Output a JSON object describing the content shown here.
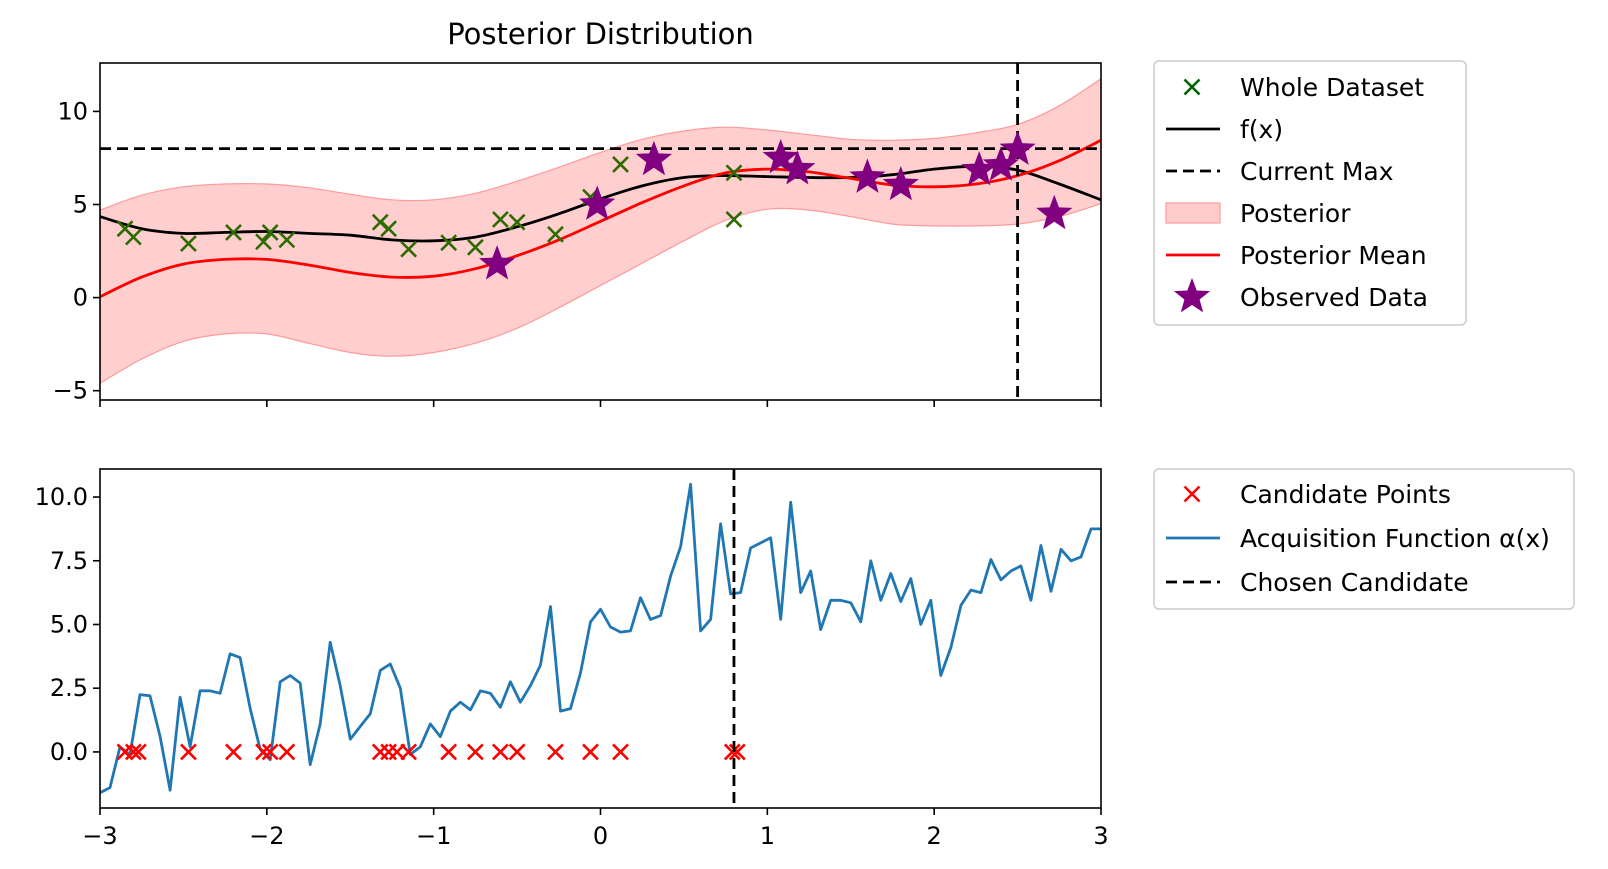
{
  "chart_data": [
    {
      "type": "line",
      "title": "Posterior Distribution",
      "xlim": [
        -3,
        3
      ],
      "ylim": [
        -5.5,
        12.6
      ],
      "x_ticks": [
        -3,
        -2,
        -1,
        0,
        1,
        2,
        3
      ],
      "x_tick_labels_shown": false,
      "y_ticks": [
        -5,
        0,
        5,
        10
      ],
      "y_tick_labels": [
        "−5",
        "0",
        "5",
        "10"
      ],
      "grid": false,
      "legend_position": "outside-right-top",
      "legend": [
        {
          "label": "Whole Dataset",
          "marker": "x",
          "color": "#006400"
        },
        {
          "label": "f(x)",
          "line": "solid",
          "color": "#000000"
        },
        {
          "label": "Current Max",
          "line": "dashed",
          "color": "#000000"
        },
        {
          "label": "Posterior",
          "patch": true,
          "color": "#ffcccc"
        },
        {
          "label": "Posterior Mean",
          "line": "solid",
          "color": "#ff0000"
        },
        {
          "label": "Observed Data",
          "marker": "star",
          "color": "#800080"
        }
      ],
      "series": [
        {
          "name": "f(x)",
          "color": "#000000",
          "x": [
            -3,
            -2.75,
            -2.5,
            -2.25,
            -2,
            -1.75,
            -1.5,
            -1.25,
            -1,
            -0.75,
            -0.5,
            -0.25,
            0,
            0.25,
            0.5,
            0.75,
            1,
            1.25,
            1.5,
            1.75,
            2,
            2.25,
            2.5,
            2.75,
            3
          ],
          "y": [
            4.35,
            3.7,
            3.45,
            3.5,
            3.55,
            3.45,
            3.35,
            3.1,
            3.05,
            3.25,
            3.8,
            4.5,
            5.3,
            6.0,
            6.45,
            6.55,
            6.5,
            6.45,
            6.45,
            6.6,
            6.9,
            7.05,
            6.85,
            6.1,
            5.25
          ]
        },
        {
          "name": "Posterior Mean",
          "color": "#ff0000",
          "x": [
            -3,
            -2.75,
            -2.5,
            -2.25,
            -2,
            -1.75,
            -1.5,
            -1.25,
            -1,
            -0.75,
            -0.5,
            -0.25,
            0,
            0.25,
            0.5,
            0.75,
            1,
            1.25,
            1.5,
            1.75,
            2,
            2.25,
            2.5,
            2.75,
            3
          ],
          "y": [
            0.05,
            1.1,
            1.8,
            2.05,
            2.05,
            1.75,
            1.35,
            1.1,
            1.15,
            1.55,
            2.25,
            3.1,
            4.1,
            5.1,
            6.0,
            6.7,
            6.9,
            6.75,
            6.4,
            6.05,
            5.95,
            6.1,
            6.55,
            7.35,
            8.45
          ]
        },
        {
          "name": "Posterior",
          "color": "#ffcccc",
          "x": [
            -3,
            -2.75,
            -2.5,
            -2.25,
            -2,
            -1.75,
            -1.5,
            -1.25,
            -1,
            -0.75,
            -0.5,
            -0.25,
            0,
            0.25,
            0.5,
            0.75,
            1,
            1.25,
            1.5,
            1.75,
            2,
            2.25,
            2.5,
            2.75,
            3
          ],
          "upper": [
            4.7,
            5.5,
            5.95,
            6.1,
            6.1,
            5.9,
            5.55,
            5.25,
            5.25,
            5.6,
            6.25,
            7.0,
            7.8,
            8.5,
            8.95,
            9.15,
            9.0,
            8.75,
            8.5,
            8.45,
            8.55,
            8.85,
            9.3,
            10.3,
            11.75
          ],
          "lower": [
            -4.6,
            -3.3,
            -2.35,
            -1.95,
            -1.95,
            -2.45,
            -2.95,
            -3.15,
            -2.95,
            -2.45,
            -1.65,
            -0.55,
            0.65,
            1.85,
            3.05,
            4.15,
            4.75,
            4.7,
            4.35,
            3.95,
            3.85,
            3.85,
            3.95,
            4.35,
            5.05
          ]
        },
        {
          "name": "Current Max",
          "color": "#000000",
          "y": 8.0
        },
        {
          "name": "Whole Dataset",
          "color": "#006400",
          "x": [
            -2.85,
            -2.8,
            -2.47,
            -2.2,
            -2.02,
            -1.98,
            -1.88,
            -1.32,
            -1.27,
            -1.15,
            -0.91,
            -0.75,
            -0.6,
            -0.5,
            -0.27,
            -0.06,
            0.12,
            0.8,
            0.8
          ],
          "y": [
            3.7,
            3.25,
            2.9,
            3.5,
            3.0,
            3.5,
            3.1,
            4.05,
            3.7,
            2.6,
            2.95,
            2.7,
            4.2,
            4.05,
            3.4,
            5.4,
            7.15,
            6.7,
            4.2
          ]
        },
        {
          "name": "Observed Data",
          "color": "#800080",
          "x": [
            -0.62,
            -0.02,
            0.32,
            1.08,
            1.18,
            1.6,
            1.8,
            2.27,
            2.4,
            2.5,
            2.72
          ],
          "y": [
            1.8,
            5.0,
            7.4,
            7.5,
            6.9,
            6.45,
            6.05,
            6.85,
            7.1,
            7.95,
            4.5
          ]
        }
      ],
      "vertical_line": {
        "x": 2.5,
        "color": "#000000",
        "style": "dashed"
      }
    },
    {
      "type": "line",
      "title": "",
      "xlim": [
        -3,
        3
      ],
      "ylim": [
        -2.2,
        11.1
      ],
      "x_ticks": [
        -3,
        -2,
        -1,
        0,
        1,
        2,
        3
      ],
      "x_tick_labels": [
        "−3",
        "−2",
        "−1",
        "0",
        "1",
        "2",
        "3"
      ],
      "y_ticks": [
        0,
        2.5,
        5,
        7.5,
        10
      ],
      "y_tick_labels": [
        "0.0",
        "2.5",
        "5.0",
        "7.5",
        "10.0"
      ],
      "grid": false,
      "legend_position": "outside-right-top",
      "legend": [
        {
          "label": "Candidate Points",
          "marker": "x",
          "color": "#ff0000"
        },
        {
          "label": "Acquisition Function α(x)",
          "line": "solid",
          "color": "#1f77b4"
        },
        {
          "label": "Chosen Candidate",
          "line": "dashed",
          "color": "#000000"
        }
      ],
      "series": [
        {
          "name": "Acquisition Function α(x)",
          "color": "#1f77b4",
          "x": [
            -3.0,
            -2.94,
            -2.88,
            -2.82,
            -2.76,
            -2.7,
            -2.64,
            -2.58,
            -2.52,
            -2.46,
            -2.4,
            -2.34,
            -2.28,
            -2.22,
            -2.16,
            -2.1,
            -2.04,
            -1.98,
            -1.92,
            -1.86,
            -1.8,
            -1.74,
            -1.68,
            -1.62,
            -1.56,
            -1.5,
            -1.44,
            -1.38,
            -1.32,
            -1.26,
            -1.2,
            -1.14,
            -1.08,
            -1.02,
            -0.96,
            -0.9,
            -0.84,
            -0.78,
            -0.72,
            -0.66,
            -0.6,
            -0.54,
            -0.48,
            -0.42,
            -0.36,
            -0.3,
            -0.24,
            -0.18,
            -0.12,
            -0.06,
            0.0,
            0.06,
            0.12,
            0.18,
            0.24,
            0.3,
            0.36,
            0.42,
            0.48,
            0.54,
            0.6,
            0.66,
            0.72,
            0.78,
            0.84,
            0.9,
            0.96,
            1.02,
            1.08,
            1.14,
            1.2,
            1.26,
            1.32,
            1.38,
            1.44,
            1.5,
            1.56,
            1.62,
            1.68,
            1.74,
            1.8,
            1.86,
            1.92,
            1.98,
            2.04,
            2.1,
            2.16,
            2.22,
            2.28,
            2.34,
            2.4,
            2.46,
            2.52,
            2.58,
            2.64,
            2.7,
            2.76,
            2.82,
            2.88,
            2.94,
            3.0
          ],
          "y": [
            -1.6,
            -1.4,
            0.2,
            -0.1,
            2.25,
            2.2,
            0.6,
            -1.5,
            2.15,
            0.2,
            2.4,
            2.4,
            2.3,
            3.85,
            3.7,
            1.7,
            0.1,
            -0.3,
            2.75,
            3.0,
            2.7,
            -0.5,
            1.1,
            4.3,
            2.6,
            0.5,
            1.0,
            1.5,
            3.2,
            3.45,
            2.5,
            -0.1,
            0.2,
            1.1,
            0.6,
            1.6,
            1.95,
            1.65,
            2.4,
            2.3,
            1.75,
            2.75,
            1.95,
            2.6,
            3.4,
            5.7,
            1.6,
            1.7,
            3.1,
            5.1,
            5.6,
            4.9,
            4.7,
            4.75,
            6.05,
            5.2,
            5.35,
            6.9,
            8.05,
            10.5,
            4.75,
            5.2,
            8.95,
            6.2,
            6.25,
            8.0,
            8.2,
            8.4,
            5.2,
            9.8,
            6.25,
            7.1,
            4.8,
            5.95,
            5.95,
            5.85,
            5.1,
            7.5,
            5.95,
            7.0,
            5.9,
            6.8,
            5.0,
            5.95,
            3.0,
            4.1,
            5.75,
            6.35,
            6.25,
            7.55,
            6.75,
            7.1,
            7.3,
            5.95,
            8.1,
            6.3,
            7.95,
            7.5,
            7.65,
            8.75,
            8.75
          ]
        },
        {
          "name": "Candidate Points",
          "color": "#ff0000",
          "x": [
            -2.85,
            -2.8,
            -2.77,
            -2.47,
            -2.2,
            -2.02,
            -1.98,
            -1.88,
            -1.32,
            -1.27,
            -1.22,
            -1.15,
            -0.91,
            -0.75,
            -0.6,
            -0.5,
            -0.27,
            -0.06,
            0.12,
            0.79,
            0.82
          ],
          "y": [
            0,
            0,
            0,
            0,
            0,
            0,
            0,
            0,
            0,
            0,
            0,
            0,
            0,
            0,
            0,
            0,
            0,
            0,
            0,
            0,
            0
          ]
        },
        {
          "name": "Chosen Candidate",
          "color": "#000000",
          "x": 0.8
        }
      ]
    }
  ]
}
